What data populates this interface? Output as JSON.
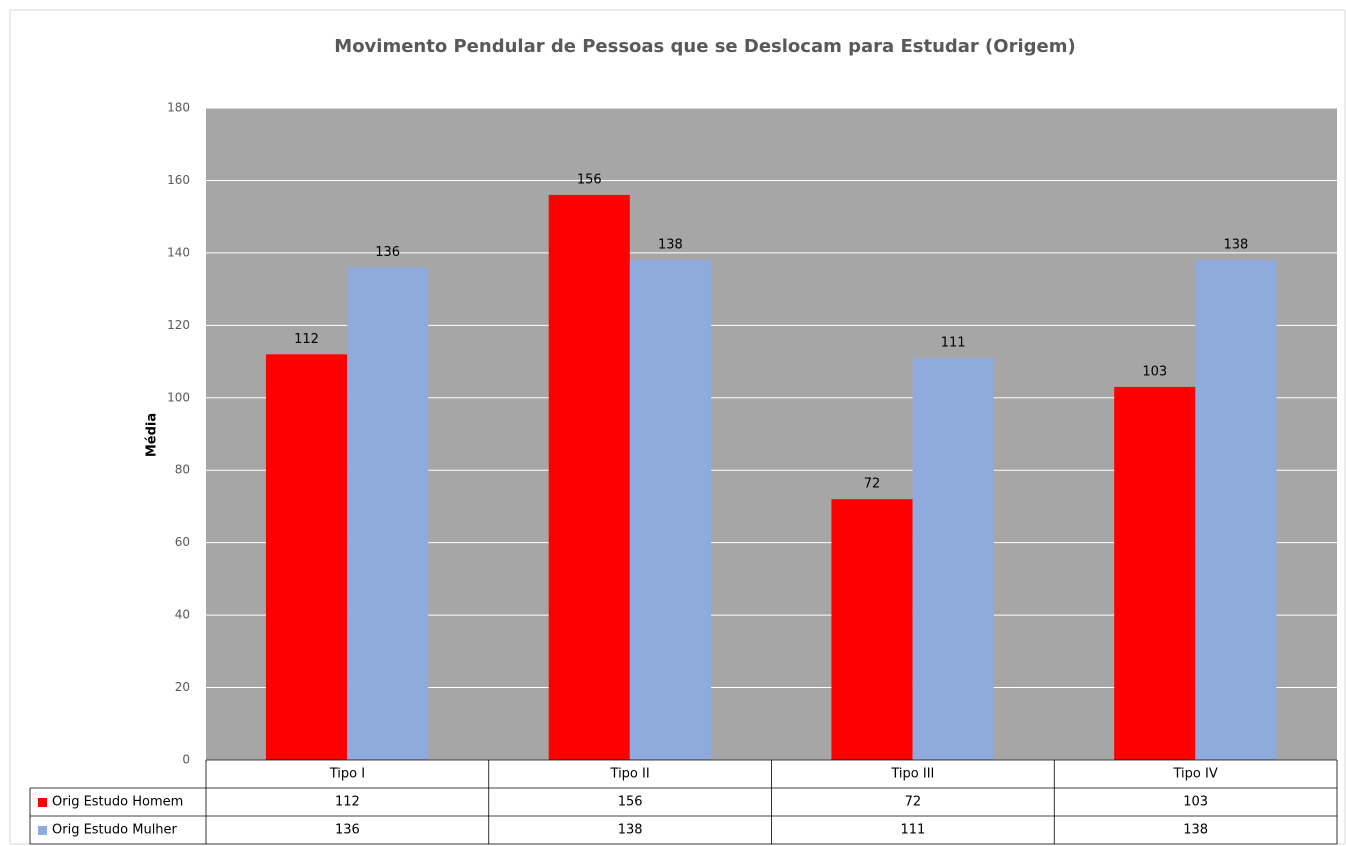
{
  "chart_data": {
    "type": "bar",
    "title": "Movimento Pendular de Pessoas que se Deslocam para Estudar (Origem)",
    "y_label": "Média",
    "categories": [
      "Tipo I",
      "Tipo II",
      "Tipo III",
      "Tipo IV"
    ],
    "series": [
      {
        "name": "Orig Estudo Homem",
        "color": "#ff0000",
        "values": [
          112,
          156,
          72,
          103
        ]
      },
      {
        "name": "Orig Estudo Mulher",
        "color": "#8faadc",
        "values": [
          136,
          138,
          111,
          138
        ]
      }
    ],
    "ylim": [
      0,
      180
    ],
    "yticks": [
      0,
      20,
      40,
      60,
      80,
      100,
      120,
      140,
      160,
      180
    ],
    "grid": true,
    "data_table": true
  }
}
